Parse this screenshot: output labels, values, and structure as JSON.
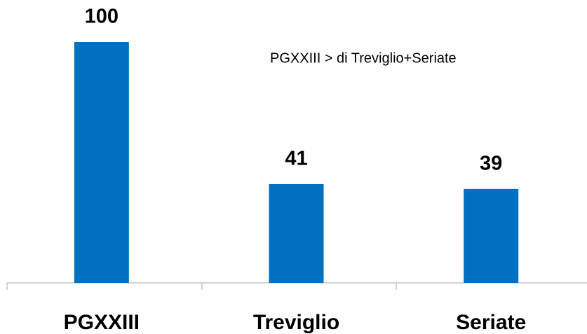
{
  "chart_data": {
    "type": "bar",
    "annotation": "PGXXIII > di Treviglio+Seriate",
    "categories": [
      "PGXXIII",
      "Treviglio",
      "Seriate"
    ],
    "values": [
      100,
      41,
      39
    ],
    "color": "#0070c0",
    "ylim": [
      0,
      100
    ]
  }
}
